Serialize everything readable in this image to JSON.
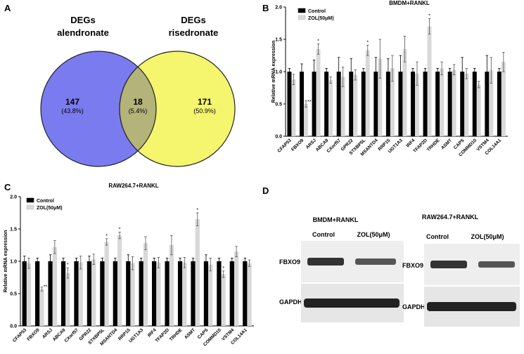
{
  "panels": {
    "A": {
      "letter": "A",
      "left_title_line1": "DEGs",
      "left_title_line2": "alendronate",
      "right_title_line1": "DEGs",
      "right_title_line2": "risedronate",
      "left_count": "147",
      "left_pct": "(43.8%)",
      "overlap_count": "18",
      "overlap_pct": "(5.4%)",
      "right_count": "171",
      "right_pct": "(50.9%)",
      "colors": {
        "left": "#7b7bf0",
        "right": "#f5f56e",
        "overlap": "#b3b37a"
      }
    },
    "B": {
      "letter": "B"
    },
    "C": {
      "letter": "C"
    },
    "D": {
      "letter": "D",
      "left_title": "BMDM+RANKL",
      "right_title": "RAW264.7+RANKL",
      "lane1": "Control",
      "lane2": "ZOL(50μM)",
      "protein1": "FBXO9",
      "protein2": "GAPDH"
    }
  },
  "chart_data": [
    {
      "panel": "B",
      "type": "bar",
      "title": "BMDM+RANKL",
      "xlabel": "",
      "ylabel": "Relative mRNA expression",
      "ylim": [
        0,
        2.0
      ],
      "yticks": [
        "0.0",
        "0.5",
        "1.0",
        "1.5",
        "2.0"
      ],
      "legend_position": "top-left",
      "categories": [
        "CFAP53",
        "FBXO9",
        "ARSJ",
        "ABCA9",
        "CXorf57",
        "GPR22",
        "STXBP5L",
        "MSANTD4",
        "RRP15",
        "UGT1A3",
        "IRF4",
        "TFAP2D",
        "TRHDE",
        "ASMT",
        "CAPS",
        "COMMD10",
        "VSTM4",
        "COL14A1"
      ],
      "series": [
        {
          "name": "Control",
          "color": "#000000",
          "values": [
            1,
            1,
            1,
            1,
            1,
            1,
            1,
            1,
            1,
            1,
            1,
            1,
            1,
            1,
            1,
            1,
            1,
            1
          ],
          "errors": [
            0.05,
            0.12,
            0.18,
            0.05,
            0.22,
            0.2,
            0.05,
            0.22,
            0.2,
            0.25,
            0.05,
            0.05,
            0.05,
            0.05,
            0.22,
            0.05,
            0.25,
            0.05
          ]
        },
        {
          "name": "ZOL(50μM)",
          "color": "#d9d9d9",
          "values": [
            0.88,
            0.5,
            1.35,
            0.87,
            0.92,
            0.95,
            1.33,
            1.2,
            1.05,
            1.35,
            0.97,
            1.7,
            1.05,
            1.03,
            0.97,
            0.8,
            1.02,
            1.15
          ],
          "errors": [
            0.08,
            0.05,
            0.08,
            0.05,
            0.15,
            0.08,
            0.08,
            0.3,
            0.2,
            0.2,
            0.18,
            0.12,
            0.1,
            0.08,
            0.08,
            0.05,
            0.2,
            0.15
          ]
        }
      ],
      "annotations": [
        {
          "category": "FBXO9",
          "series": "ZOL(50μM)",
          "text": "**"
        },
        {
          "category": "ARSJ",
          "series": "ZOL(50μM)",
          "text": "*"
        },
        {
          "category": "STXBP5L",
          "series": "ZOL(50μM)",
          "text": "*"
        },
        {
          "category": "TFAP2D",
          "series": "ZOL(50μM)",
          "text": "*"
        }
      ]
    },
    {
      "panel": "C",
      "type": "bar",
      "title": "RAW264.7+RANKL",
      "xlabel": "",
      "ylabel": "Relative mRNA expression",
      "ylim": [
        0,
        2.0
      ],
      "yticks": [
        "0.0",
        "0.5",
        "1.0",
        "1.5",
        "2.0"
      ],
      "legend_position": "top-left",
      "categories": [
        "CFAP53",
        "FBXO9",
        "ARSJ",
        "ABCA9",
        "CXorf57",
        "GPR22",
        "STXBP5L",
        "MSANTD4",
        "RRP15",
        "UGT1A3",
        "IRF4",
        "TFAP2D",
        "TRHDE",
        "ASMT",
        "CAPS",
        "COMMD10",
        "VSTM4",
        "COL14A1"
      ],
      "series": [
        {
          "name": "Control",
          "color": "#000000",
          "values": [
            1,
            1,
            1,
            1,
            1,
            1,
            1,
            1,
            1,
            1,
            1,
            1,
            1,
            1,
            1,
            1,
            1,
            1
          ],
          "errors": [
            0.08,
            0.05,
            0.1,
            0.05,
            0.05,
            0.08,
            0.05,
            0.05,
            0.1,
            0.05,
            0.05,
            0.05,
            0.05,
            0.05,
            0.1,
            0.05,
            0.05,
            0.05
          ]
        },
        {
          "name": "ZOL(50μM)",
          "color": "#d9d9d9",
          "values": [
            0.97,
            0.57,
            1.22,
            0.82,
            0.98,
            1.03,
            1.3,
            1.4,
            0.97,
            1.28,
            0.98,
            1.25,
            0.98,
            1.65,
            0.95,
            0.8,
            1.15,
            0.97
          ],
          "errors": [
            0.08,
            0.03,
            0.1,
            0.08,
            0.1,
            0.08,
            0.05,
            0.05,
            0.1,
            0.1,
            0.08,
            0.15,
            0.08,
            0.1,
            0.1,
            0.05,
            0.08,
            0.05
          ]
        }
      ],
      "annotations": [
        {
          "category": "FBXO9",
          "series": "ZOL(50μM)",
          "text": "**"
        },
        {
          "category": "ABCA9",
          "series": "ZOL(50μM)",
          "text": "*"
        },
        {
          "category": "STXBP5L",
          "series": "ZOL(50μM)",
          "text": "*"
        },
        {
          "category": "MSANTD4",
          "series": "ZOL(50μM)",
          "text": "*"
        },
        {
          "category": "ASMT",
          "series": "ZOL(50μM)",
          "text": "*"
        },
        {
          "category": "COMMD10",
          "series": "ZOL(50μM)",
          "text": "*"
        }
      ]
    }
  ]
}
